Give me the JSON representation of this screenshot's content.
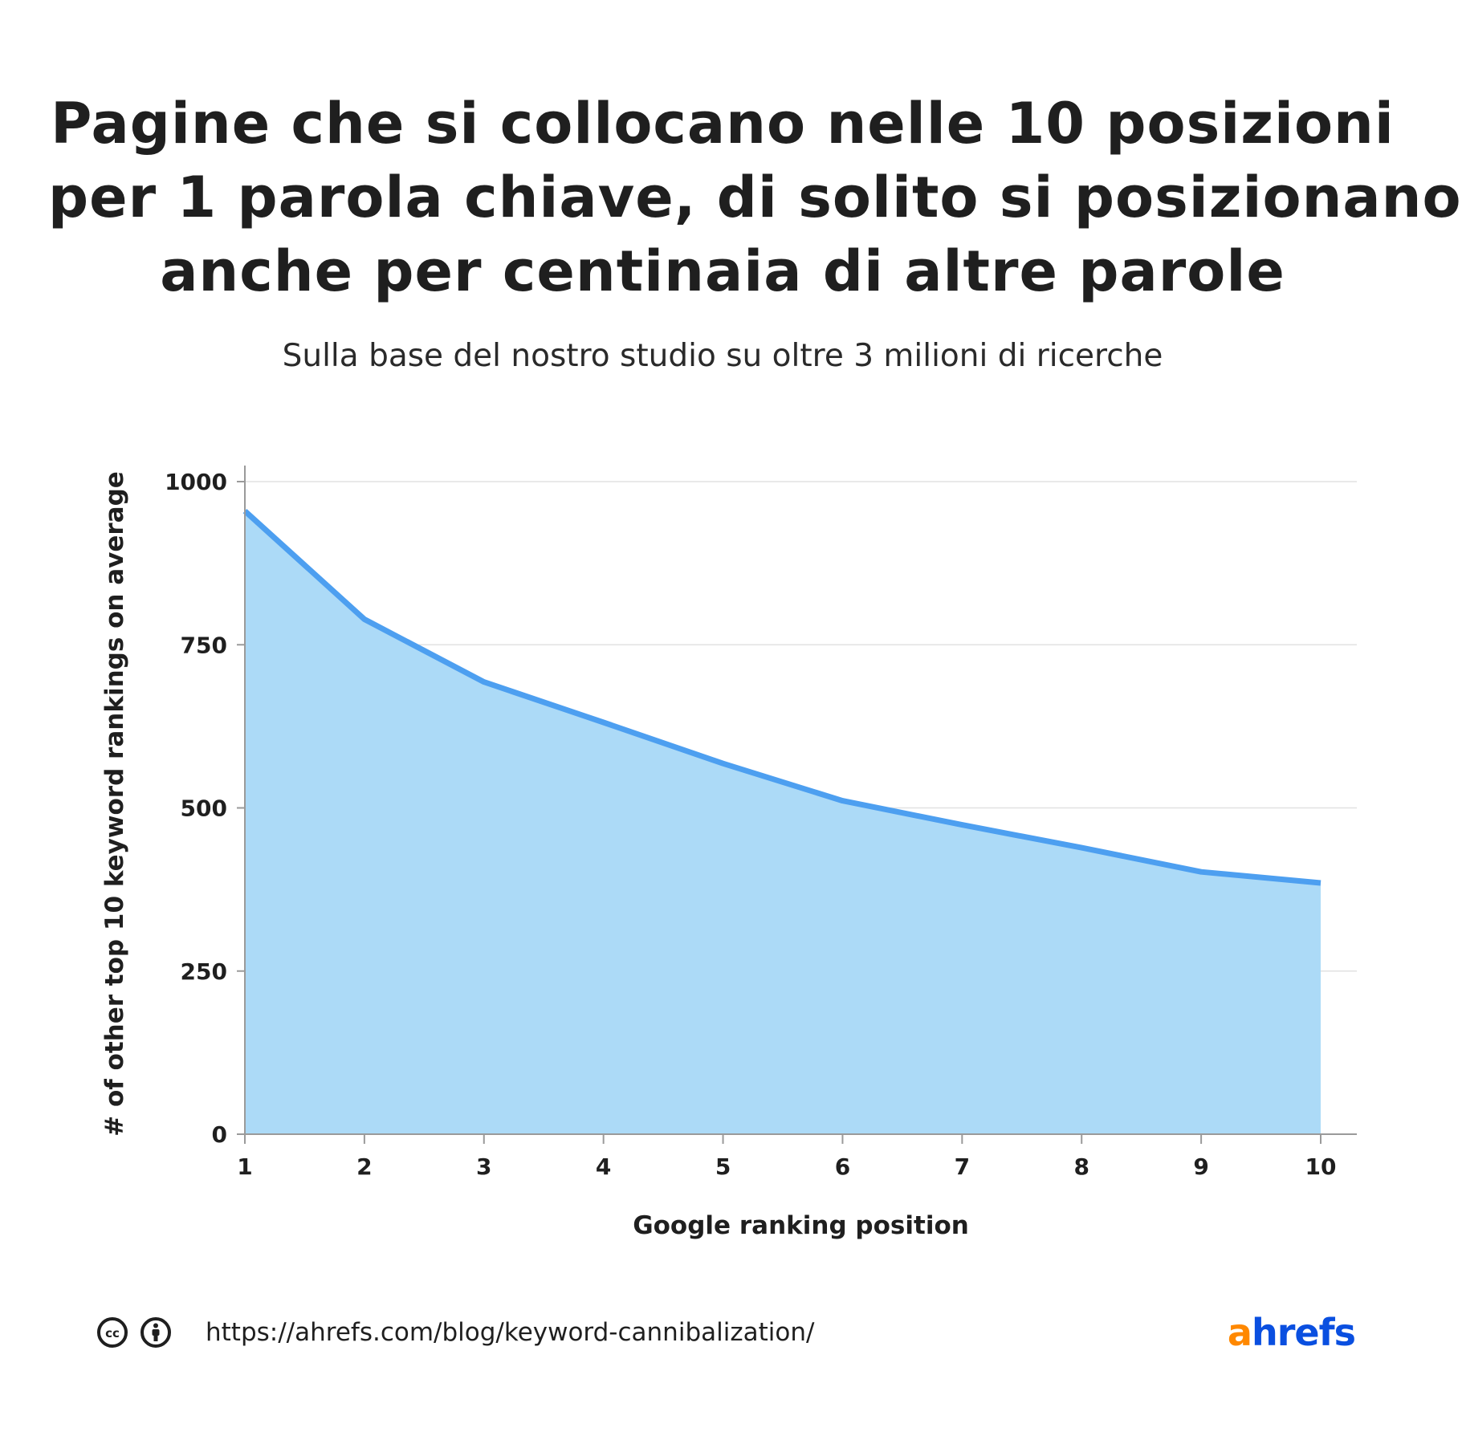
{
  "title_lines": [
    "Pagine che si collocano nelle 10 posizioni",
    "per 1 parola chiave, di solito si posizionano",
    "anche per centinaia di altre parole"
  ],
  "subtitle": "Sulla base del nostro studio su oltre 3 milioni di ricerche",
  "chart_data": {
    "type": "area",
    "title": "Pagine che si collocano nelle 10 posizioni per 1 parola chiave, di solito si posizionano anche per centinaia di altre parole",
    "subtitle": "Sulla base del nostro studio su oltre 3 milioni di ricerche",
    "xlabel": "Google ranking position",
    "ylabel": "# of other top 10 keyword rankings on average",
    "x": [
      1,
      2,
      3,
      4,
      5,
      6,
      7,
      8,
      9,
      10
    ],
    "series": [
      {
        "values": [
          955,
          789,
          693,
          631,
          568,
          511,
          474,
          439,
          402,
          385
        ]
      }
    ],
    "xlim": [
      1,
      10
    ],
    "ylim": [
      0,
      1000
    ],
    "yticks": [
      0,
      250,
      500,
      750,
      1000
    ],
    "xticks": [
      1,
      2,
      3,
      4,
      5,
      6,
      7,
      8,
      9,
      10
    ],
    "grid": "horizontal",
    "legend": "none",
    "colors": {
      "line": "#4d9ff0",
      "fill": "#acdaf7",
      "grid": "#e2e2e2",
      "axis": "#9a9a9a"
    }
  },
  "footer": {
    "source_url": "https://ahrefs.com/blog/keyword-cannibalization/",
    "icons": [
      "creative-commons-icon",
      "attribution-person-icon"
    ]
  },
  "logo": {
    "first": "a",
    "rest": "hrefs",
    "colors": {
      "first": "#ff8800",
      "rest": "#0a4fe0"
    }
  }
}
